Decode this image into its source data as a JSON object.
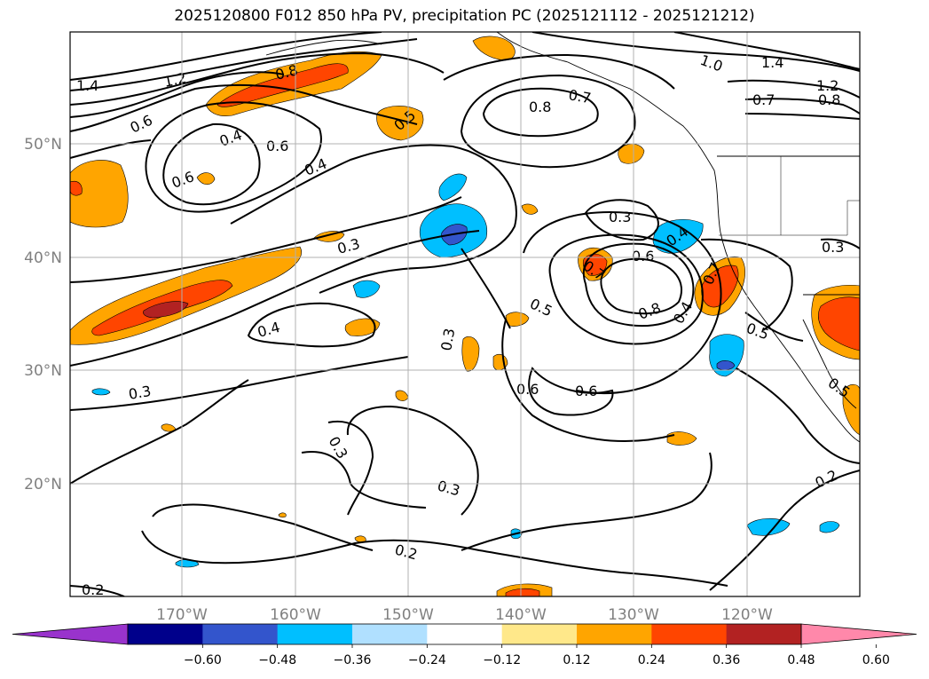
{
  "title": "2025120800 F012 850 hPa PV, precipitation PC (2025121112 - 2025121212)",
  "lon_ticks": [
    "170°W",
    "160°W",
    "150°W",
    "140°W",
    "130°W",
    "120°W"
  ],
  "lat_ticks": [
    "50°N",
    "40°N",
    "30°N",
    "20°N"
  ],
  "colorbar": {
    "colors": [
      "#9933cc",
      "#00008b",
      "#3355cc",
      "#00bfff",
      "#b0e0ff",
      "#ffffff",
      "#ffe88a",
      "#ffa500",
      "#ff4500",
      "#b22222",
      "#ff88aa"
    ],
    "labels": [
      "−0.60",
      "−0.48",
      "−0.36",
      "−0.24",
      "−0.12",
      "0.12",
      "0.24",
      "0.36",
      "0.48",
      "0.60"
    ]
  },
  "contour_labels": [
    {
      "text": "1.4"
    },
    {
      "text": "1.2"
    },
    {
      "text": "0.8"
    },
    {
      "text": "0.6"
    },
    {
      "text": "0.4"
    },
    {
      "text": "0.6"
    },
    {
      "text": "0.6"
    },
    {
      "text": "0.4"
    },
    {
      "text": "0.5"
    },
    {
      "text": "0.8"
    },
    {
      "text": "0.7"
    },
    {
      "text": "1.0"
    },
    {
      "text": "1.4"
    },
    {
      "text": "1.2"
    },
    {
      "text": "0.7"
    },
    {
      "text": "0.8"
    },
    {
      "text": "0.3"
    },
    {
      "text": "0.4"
    },
    {
      "text": "0.7"
    },
    {
      "text": "0.6"
    },
    {
      "text": "0.8"
    },
    {
      "text": "0.4"
    },
    {
      "text": "0.3"
    },
    {
      "text": "0.3"
    },
    {
      "text": "0.4"
    },
    {
      "text": "0.5"
    },
    {
      "text": "0.3"
    },
    {
      "text": "0.3"
    },
    {
      "text": "0.6"
    },
    {
      "text": "0.6"
    },
    {
      "text": "0.7"
    },
    {
      "text": "0.5"
    },
    {
      "text": "0.5"
    },
    {
      "text": "0.3"
    },
    {
      "text": "0.3"
    },
    {
      "text": "0.2"
    },
    {
      "text": "0.2"
    },
    {
      "text": "0.2"
    }
  ]
}
